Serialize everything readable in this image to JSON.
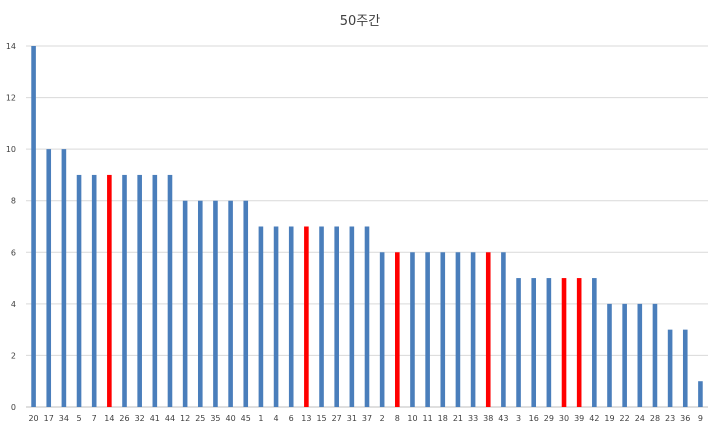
{
  "chart_data": {
    "type": "bar",
    "title": "50주간",
    "xlabel": "",
    "ylabel": "",
    "ylim": [
      0,
      14
    ],
    "yticks": [
      0,
      2,
      4,
      6,
      8,
      10,
      12,
      14
    ],
    "grid": true,
    "legend": "none",
    "colors": {
      "default": "#4a7ebb",
      "highlight": "#ff0000",
      "grid": "#d9d9d9",
      "axis": "#bfbfbf"
    },
    "categories": [
      "20",
      "17",
      "34",
      "5",
      "7",
      "14",
      "26",
      "32",
      "41",
      "44",
      "12",
      "25",
      "35",
      "40",
      "45",
      "1",
      "4",
      "6",
      "13",
      "15",
      "27",
      "31",
      "37",
      "2",
      "8",
      "10",
      "11",
      "18",
      "21",
      "33",
      "38",
      "43",
      "3",
      "16",
      "29",
      "30",
      "39",
      "42",
      "19",
      "22",
      "24",
      "28",
      "23",
      "36",
      "9"
    ],
    "values": [
      14,
      10,
      10,
      9,
      9,
      9,
      9,
      9,
      9,
      9,
      8,
      8,
      8,
      8,
      8,
      7,
      7,
      7,
      7,
      7,
      7,
      7,
      7,
      6,
      6,
      6,
      6,
      6,
      6,
      6,
      6,
      6,
      5,
      5,
      5,
      5,
      5,
      5,
      4,
      4,
      4,
      4,
      3,
      3,
      1
    ],
    "highlighted": [
      "14",
      "13",
      "8",
      "38",
      "30",
      "39"
    ]
  }
}
